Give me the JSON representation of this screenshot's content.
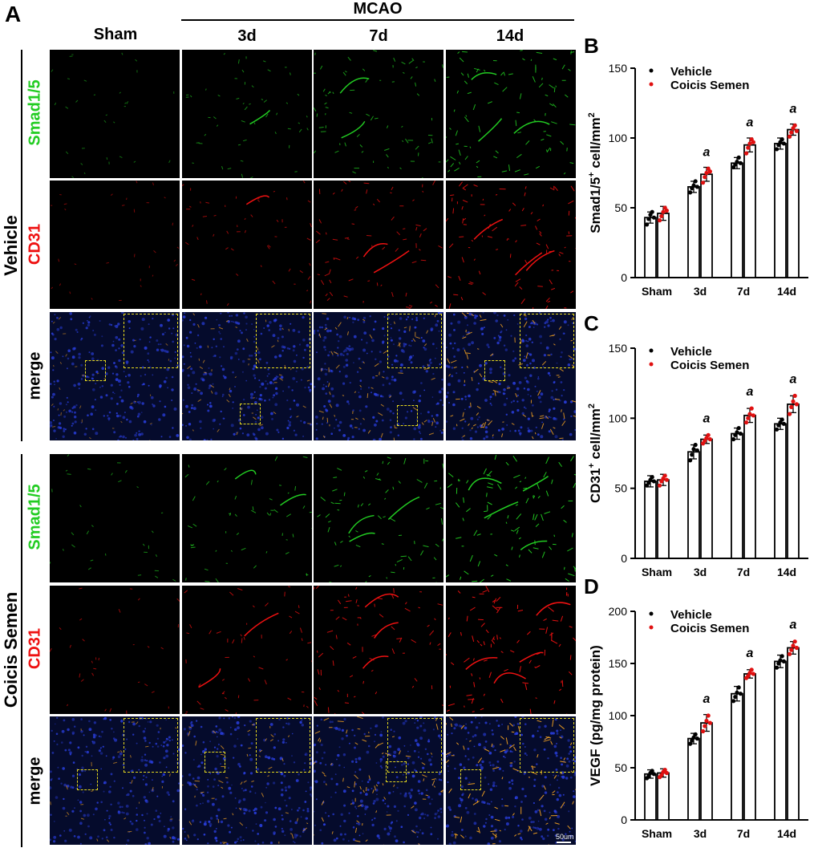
{
  "panel_a": {
    "letter": "A",
    "column_headers": [
      "Sham",
      "3d",
      "7d",
      "14d"
    ],
    "mcao_label": "MCAO",
    "groups": [
      "Vehicle",
      "Coicis Semen"
    ],
    "row_labels": {
      "smad": "Smad1/5",
      "cd31": "CD31",
      "merge": "merge"
    },
    "scale_bar": "50um",
    "colors": {
      "smad": "#22cc22",
      "cd31": "#ee1111",
      "merge_bg": "#050b2c",
      "inset_border": "#e5d81e"
    }
  },
  "chart_data": [
    {
      "panel": "B",
      "type": "bar",
      "categories": [
        "Sham",
        "3d",
        "7d",
        "14d"
      ],
      "series": [
        {
          "name": "Vehicle",
          "color": "#000000",
          "values": [
            43,
            65,
            82,
            96
          ],
          "errors": [
            4,
            4,
            4,
            4
          ],
          "points": [
            [
              38,
              42,
              45,
              47,
              43
            ],
            [
              61,
              64,
              66,
              69,
              65
            ],
            [
              79,
              81,
              83,
              86,
              82
            ],
            [
              92,
              95,
              97,
              99,
              96
            ]
          ]
        },
        {
          "name": "Coicis Semen",
          "color": "#e01010",
          "values": [
            46,
            74,
            95,
            106
          ],
          "errors": [
            5,
            5,
            5,
            4
          ],
          "points": [
            [
              41,
              44,
              47,
              50,
              48
            ],
            [
              68,
              72,
              75,
              78,
              76
            ],
            [
              89,
              93,
              96,
              99,
              97
            ],
            [
              101,
              104,
              107,
              109,
              105
            ]
          ]
        }
      ],
      "ylabel": "Smad1/5+ cell/mm2",
      "ylabel_main": "Smad1/5",
      "ylabel_sup1": "+",
      "ylabel_mid": " cell/mm",
      "ylabel_sup2": "2",
      "yticks": [
        0,
        50,
        100,
        150
      ],
      "ylim": [
        0,
        150
      ],
      "annotations": [
        "",
        "a",
        "a",
        "a"
      ],
      "legend": [
        "Vehicle",
        "Coicis Semen"
      ],
      "legend_position": "top-left"
    },
    {
      "panel": "C",
      "type": "bar",
      "categories": [
        "Sham",
        "3d",
        "7d",
        "14d"
      ],
      "series": [
        {
          "name": "Vehicle",
          "color": "#000000",
          "values": [
            55,
            76,
            89,
            96
          ],
          "errors": [
            4,
            5,
            4,
            4
          ],
          "points": [
            [
              52,
              54,
              56,
              58,
              55
            ],
            [
              70,
              74,
              78,
              81,
              77
            ],
            [
              85,
              88,
              90,
              93,
              89
            ],
            [
              92,
              95,
              97,
              99,
              96
            ]
          ]
        },
        {
          "name": "Coicis Semen",
          "color": "#e01010",
          "values": [
            56,
            85,
            102,
            110
          ],
          "errors": [
            4,
            3,
            5,
            6
          ],
          "points": [
            [
              52,
              55,
              57,
              59,
              56
            ],
            [
              82,
              84,
              86,
              88,
              85
            ],
            [
              97,
              100,
              103,
              107,
              102
            ],
            [
              103,
              108,
              112,
              116,
              110
            ]
          ]
        }
      ],
      "ylabel": "CD31+ cell/mm2",
      "ylabel_main": "CD31",
      "ylabel_sup1": "+",
      "ylabel_mid": " cell/mm",
      "ylabel_sup2": "2",
      "yticks": [
        0,
        50,
        100,
        150
      ],
      "ylim": [
        0,
        150
      ],
      "annotations": [
        "",
        "a",
        "a",
        "a"
      ],
      "legend": [
        "Vehicle",
        "Coicis Semen"
      ],
      "legend_position": "top-left"
    },
    {
      "panel": "D",
      "type": "bar",
      "categories": [
        "Sham",
        "3d",
        "7d",
        "14d"
      ],
      "series": [
        {
          "name": "Vehicle",
          "color": "#000000",
          "values": [
            44,
            78,
            121,
            152
          ],
          "errors": [
            4,
            5,
            7,
            6
          ],
          "points": [
            [
              40,
              42,
              45,
              47,
              44
            ],
            [
              73,
              76,
              79,
              82,
              78
            ],
            [
              114,
              118,
              122,
              127,
              121
            ],
            [
              146,
              150,
              153,
              157,
              152
            ]
          ]
        },
        {
          "name": "Coicis Semen",
          "color": "#e01010",
          "values": [
            45,
            93,
            140,
            165
          ],
          "errors": [
            4,
            8,
            4,
            6
          ],
          "points": [
            [
              41,
              43,
              46,
              48,
              45
            ],
            [
              85,
              90,
              95,
              100,
              93
            ],
            [
              136,
              138,
              141,
              144,
              140
            ],
            [
              159,
              163,
              167,
              171,
              165
            ]
          ]
        }
      ],
      "ylabel": "VEGF (pg/mg protein)",
      "ylabel_main": "VEGF (pg/mg protein)",
      "ylabel_sup1": "",
      "ylabel_mid": "",
      "ylabel_sup2": "",
      "yticks": [
        0,
        50,
        100,
        150,
        200
      ],
      "ylim": [
        0,
        200
      ],
      "annotations": [
        "",
        "a",
        "a",
        "a"
      ],
      "legend": [
        "Vehicle",
        "Coicis Semen"
      ],
      "legend_position": "top-left"
    }
  ]
}
